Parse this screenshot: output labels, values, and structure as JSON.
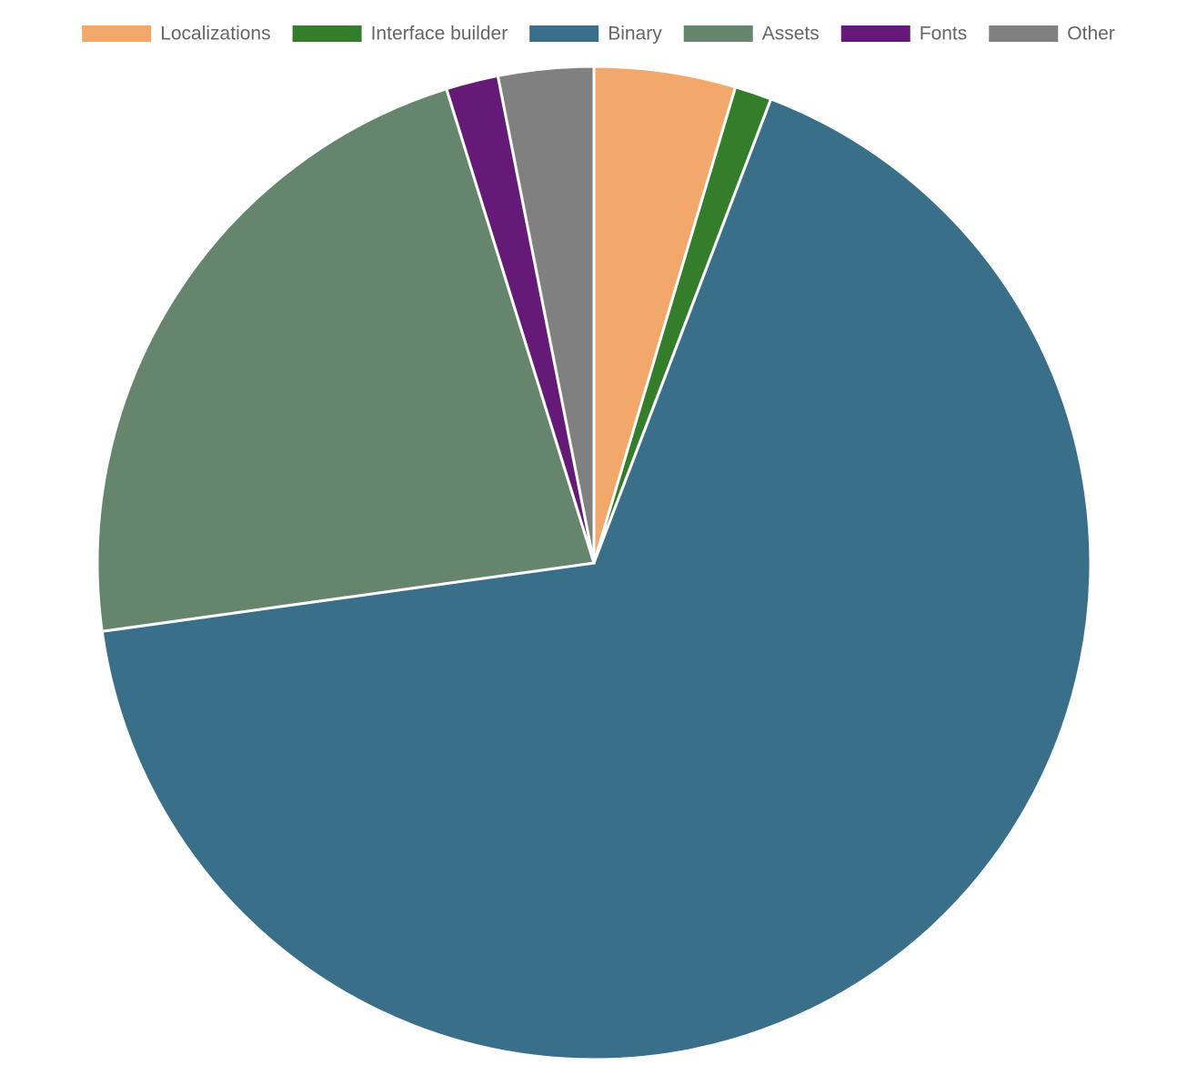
{
  "chart_data": {
    "type": "pie",
    "categories": [
      "Localizations",
      "Interface builder",
      "Binary",
      "Assets",
      "Fonts",
      "Other"
    ],
    "values": [
      4.6,
      1.2,
      67.0,
      22.4,
      1.7,
      3.1
    ],
    "colors": [
      "#f2a86a",
      "#347d2a",
      "#3a6f8a",
      "#65866d",
      "#651a78",
      "#808080"
    ],
    "legend": "top"
  }
}
